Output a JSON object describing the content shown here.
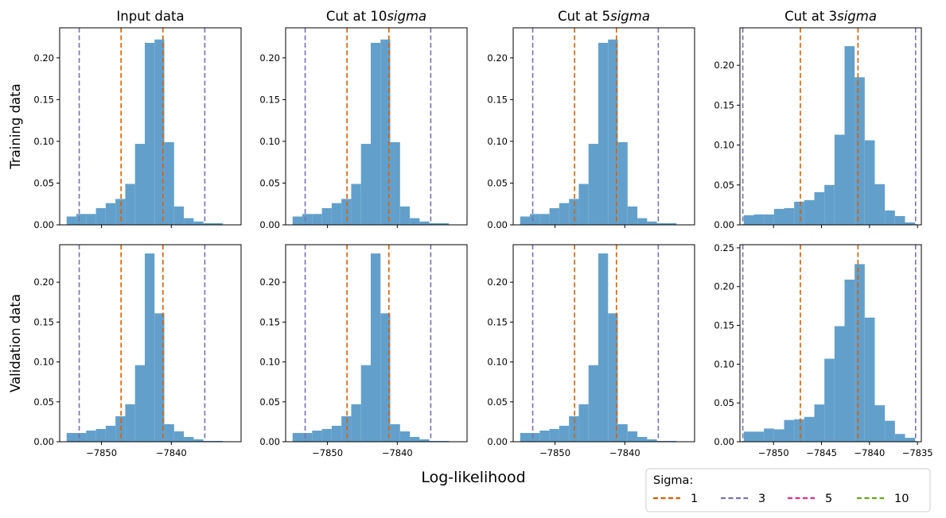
{
  "figure": {
    "xlabel": "Log-likelihood",
    "row_labels": [
      "Training data",
      "Validation data"
    ],
    "legend": {
      "title": "Sigma:",
      "placement": "lower-right",
      "entries": [
        {
          "label": "1",
          "color": "#d95f02",
          "dash": "dashed"
        },
        {
          "label": "3",
          "color": "#7570b3",
          "dash": "dashed"
        },
        {
          "label": "5",
          "color": "#e7298a",
          "dash": "dashed"
        },
        {
          "label": "10",
          "color": "#66a61e",
          "dash": "dashed"
        }
      ]
    }
  },
  "chart_data": [
    {
      "type": "bar",
      "row": "Training data",
      "title": "Input data",
      "bar_color": "#62a0cb",
      "bin_edges": [
        -7855.0,
        -7853.6,
        -7852.2,
        -7850.8,
        -7849.4,
        -7848.0,
        -7846.6,
        -7845.2,
        -7843.8,
        -7842.4,
        -7841.0,
        -7839.6,
        -7838.2,
        -7836.8,
        -7835.4,
        -7834.0,
        -7832.6
      ],
      "values": [
        0.01,
        0.013,
        0.013,
        0.02,
        0.026,
        0.031,
        0.049,
        0.097,
        0.218,
        0.222,
        0.099,
        0.022,
        0.008,
        0.004,
        0.002,
        0.002
      ],
      "vlines": [
        {
          "x": -7847.2,
          "sigma": "1"
        },
        {
          "x": -7841.2,
          "sigma": "1"
        },
        {
          "x": -7853.2,
          "sigma": "3"
        },
        {
          "x": -7835.2,
          "sigma": "3"
        }
      ],
      "xlim": [
        -7856.0,
        -7830.0
      ],
      "ylim": [
        0.0,
        0.236
      ],
      "xticks": [
        -7850,
        -7840
      ],
      "xtick_labels": [],
      "yticks": [
        0.0,
        0.05,
        0.1,
        0.15,
        0.2
      ],
      "ytick_labels": [
        "0.00",
        "0.05",
        "0.10",
        "0.15",
        "0.20"
      ],
      "grid": false
    },
    {
      "type": "bar",
      "row": "Training data",
      "title": "Cut at 10sigma",
      "bar_color": "#62a0cb",
      "bin_edges": [
        -7855.0,
        -7853.6,
        -7852.2,
        -7850.8,
        -7849.4,
        -7848.0,
        -7846.6,
        -7845.2,
        -7843.8,
        -7842.4,
        -7841.0,
        -7839.6,
        -7838.2,
        -7836.8,
        -7835.4,
        -7834.0,
        -7832.6
      ],
      "values": [
        0.01,
        0.013,
        0.013,
        0.02,
        0.026,
        0.031,
        0.049,
        0.097,
        0.218,
        0.222,
        0.099,
        0.022,
        0.008,
        0.004,
        0.002,
        0.002
      ],
      "vlines": [
        {
          "x": -7847.2,
          "sigma": "1"
        },
        {
          "x": -7841.2,
          "sigma": "1"
        },
        {
          "x": -7853.2,
          "sigma": "3"
        },
        {
          "x": -7835.2,
          "sigma": "3"
        }
      ],
      "xlim": [
        -7856.0,
        -7830.0
      ],
      "ylim": [
        0.0,
        0.236
      ],
      "xticks": [
        -7850,
        -7840
      ],
      "xtick_labels": [],
      "yticks": [
        0.0,
        0.05,
        0.1,
        0.15,
        0.2
      ],
      "ytick_labels": [
        "0.00",
        "0.05",
        "0.10",
        "0.15",
        "0.20"
      ],
      "grid": false
    },
    {
      "type": "bar",
      "row": "Training data",
      "title": "Cut at 5sigma",
      "bar_color": "#62a0cb",
      "bin_edges": [
        -7855.0,
        -7853.6,
        -7852.2,
        -7850.8,
        -7849.4,
        -7848.0,
        -7846.6,
        -7845.2,
        -7843.8,
        -7842.4,
        -7841.0,
        -7839.6,
        -7838.2,
        -7836.8,
        -7835.4,
        -7834.0,
        -7832.6
      ],
      "values": [
        0.01,
        0.013,
        0.013,
        0.02,
        0.026,
        0.031,
        0.049,
        0.097,
        0.218,
        0.222,
        0.099,
        0.022,
        0.008,
        0.004,
        0.002,
        0.002
      ],
      "vlines": [
        {
          "x": -7847.2,
          "sigma": "1"
        },
        {
          "x": -7841.2,
          "sigma": "1"
        },
        {
          "x": -7853.2,
          "sigma": "3"
        },
        {
          "x": -7835.2,
          "sigma": "3"
        }
      ],
      "xlim": [
        -7856.0,
        -7830.0
      ],
      "ylim": [
        0.0,
        0.236
      ],
      "xticks": [
        -7850,
        -7840
      ],
      "xtick_labels": [],
      "yticks": [
        0.0,
        0.05,
        0.1,
        0.15,
        0.2
      ],
      "ytick_labels": [
        "0.00",
        "0.05",
        "0.10",
        "0.15",
        "0.20"
      ],
      "grid": false
    },
    {
      "type": "bar",
      "row": "Training data",
      "title": "Cut at 3sigma",
      "bar_color": "#62a0cb",
      "bin_edges": [
        -7853.1,
        -7852.05,
        -7851.0,
        -7849.95,
        -7848.9,
        -7847.85,
        -7846.8,
        -7845.75,
        -7844.7,
        -7843.65,
        -7842.6,
        -7841.55,
        -7840.5,
        -7839.45,
        -7838.4,
        -7837.35,
        -7836.3,
        -7835.25
      ],
      "values": [
        0.012,
        0.013,
        0.013,
        0.02,
        0.021,
        0.029,
        0.031,
        0.041,
        0.05,
        0.113,
        0.224,
        0.185,
        0.106,
        0.051,
        0.018,
        0.011,
        0.003
      ],
      "vlines": [
        {
          "x": -7847.2,
          "sigma": "1"
        },
        {
          "x": -7841.2,
          "sigma": "1"
        },
        {
          "x": -7853.2,
          "sigma": "3"
        },
        {
          "x": -7835.2,
          "sigma": "3"
        }
      ],
      "xlim": [
        -7853.5,
        -7834.6
      ],
      "ylim": [
        0.0,
        0.247
      ],
      "xticks": [
        -7850,
        -7845,
        -7840,
        -7835
      ],
      "xtick_labels": [],
      "yticks": [
        0.0,
        0.05,
        0.1,
        0.15,
        0.2
      ],
      "ytick_labels": [
        "0.00",
        "0.05",
        "0.10",
        "0.15",
        "0.20"
      ],
      "grid": false
    },
    {
      "type": "bar",
      "row": "Validation data",
      "title": "",
      "bar_color": "#62a0cb",
      "bin_edges": [
        -7855.0,
        -7853.6,
        -7852.2,
        -7850.8,
        -7849.4,
        -7848.0,
        -7846.6,
        -7845.2,
        -7843.8,
        -7842.4,
        -7841.0,
        -7839.6,
        -7838.2,
        -7836.8,
        -7835.4,
        -7834.0,
        -7832.6
      ],
      "values": [
        0.011,
        0.011,
        0.014,
        0.016,
        0.02,
        0.032,
        0.047,
        0.096,
        0.236,
        0.161,
        0.022,
        0.013,
        0.006,
        0.003,
        0.001,
        0.001
      ],
      "vlines": [
        {
          "x": -7847.2,
          "sigma": "1"
        },
        {
          "x": -7841.2,
          "sigma": "1"
        },
        {
          "x": -7853.2,
          "sigma": "3"
        },
        {
          "x": -7835.2,
          "sigma": "3"
        }
      ],
      "xlim": [
        -7856.0,
        -7830.0
      ],
      "ylim": [
        0.0,
        0.247
      ],
      "xticks": [
        -7850,
        -7840
      ],
      "xtick_labels": [
        "−7850",
        "−7840"
      ],
      "yticks": [
        0.0,
        0.05,
        0.1,
        0.15,
        0.2
      ],
      "ytick_labels": [
        "0.00",
        "0.05",
        "0.10",
        "0.15",
        "0.20"
      ],
      "grid": false
    },
    {
      "type": "bar",
      "row": "Validation data",
      "title": "",
      "bar_color": "#62a0cb",
      "bin_edges": [
        -7855.0,
        -7853.6,
        -7852.2,
        -7850.8,
        -7849.4,
        -7848.0,
        -7846.6,
        -7845.2,
        -7843.8,
        -7842.4,
        -7841.0,
        -7839.6,
        -7838.2,
        -7836.8,
        -7835.4,
        -7834.0,
        -7832.6
      ],
      "values": [
        0.011,
        0.011,
        0.014,
        0.016,
        0.02,
        0.032,
        0.047,
        0.096,
        0.236,
        0.161,
        0.022,
        0.013,
        0.006,
        0.003,
        0.001,
        0.001
      ],
      "vlines": [
        {
          "x": -7847.2,
          "sigma": "1"
        },
        {
          "x": -7841.2,
          "sigma": "1"
        },
        {
          "x": -7853.2,
          "sigma": "3"
        },
        {
          "x": -7835.2,
          "sigma": "3"
        }
      ],
      "xlim": [
        -7856.0,
        -7830.0
      ],
      "ylim": [
        0.0,
        0.247
      ],
      "xticks": [
        -7850,
        -7840
      ],
      "xtick_labels": [
        "−7850",
        "−7840"
      ],
      "yticks": [
        0.0,
        0.05,
        0.1,
        0.15,
        0.2
      ],
      "ytick_labels": [
        "0.00",
        "0.05",
        "0.10",
        "0.15",
        "0.20"
      ],
      "grid": false
    },
    {
      "type": "bar",
      "row": "Validation data",
      "title": "",
      "bar_color": "#62a0cb",
      "bin_edges": [
        -7855.0,
        -7853.6,
        -7852.2,
        -7850.8,
        -7849.4,
        -7848.0,
        -7846.6,
        -7845.2,
        -7843.8,
        -7842.4,
        -7841.0,
        -7839.6,
        -7838.2,
        -7836.8,
        -7835.4,
        -7834.0,
        -7832.6
      ],
      "values": [
        0.011,
        0.011,
        0.014,
        0.016,
        0.02,
        0.032,
        0.047,
        0.096,
        0.236,
        0.161,
        0.022,
        0.013,
        0.006,
        0.003,
        0.001,
        0.001
      ],
      "vlines": [
        {
          "x": -7847.2,
          "sigma": "1"
        },
        {
          "x": -7841.2,
          "sigma": "1"
        },
        {
          "x": -7853.2,
          "sigma": "3"
        },
        {
          "x": -7835.2,
          "sigma": "3"
        }
      ],
      "xlim": [
        -7856.0,
        -7830.0
      ],
      "ylim": [
        0.0,
        0.247
      ],
      "xticks": [
        -7850,
        -7840
      ],
      "xtick_labels": [
        "−7850",
        "−7840"
      ],
      "yticks": [
        0.0,
        0.05,
        0.1,
        0.15,
        0.2
      ],
      "ytick_labels": [
        "0.00",
        "0.05",
        "0.10",
        "0.15",
        "0.20"
      ],
      "grid": false
    },
    {
      "type": "bar",
      "row": "Validation data",
      "title": "",
      "bar_color": "#62a0cb",
      "bin_edges": [
        -7853.1,
        -7852.05,
        -7851.0,
        -7849.95,
        -7848.9,
        -7847.85,
        -7846.8,
        -7845.75,
        -7844.7,
        -7843.65,
        -7842.6,
        -7841.55,
        -7840.5,
        -7839.45,
        -7838.4,
        -7837.35,
        -7836.3,
        -7835.25
      ],
      "values": [
        0.013,
        0.013,
        0.017,
        0.016,
        0.028,
        0.029,
        0.032,
        0.048,
        0.107,
        0.149,
        0.209,
        0.229,
        0.16,
        0.047,
        0.027,
        0.01,
        0.005
      ],
      "vlines": [
        {
          "x": -7847.2,
          "sigma": "1"
        },
        {
          "x": -7841.2,
          "sigma": "1"
        },
        {
          "x": -7853.2,
          "sigma": "3"
        },
        {
          "x": -7835.2,
          "sigma": "3"
        }
      ],
      "xlim": [
        -7853.5,
        -7834.6
      ],
      "ylim": [
        0.0,
        0.254
      ],
      "xticks": [
        -7850,
        -7845,
        -7840,
        -7835
      ],
      "xtick_labels": [
        "−7850",
        "−7845",
        "−7840",
        "−7835"
      ],
      "yticks": [
        0.0,
        0.05,
        0.1,
        0.15,
        0.2,
        0.25
      ],
      "ytick_labels": [
        "0.00",
        "0.05",
        "0.10",
        "0.15",
        "0.20",
        "0.25"
      ],
      "grid": false
    }
  ]
}
